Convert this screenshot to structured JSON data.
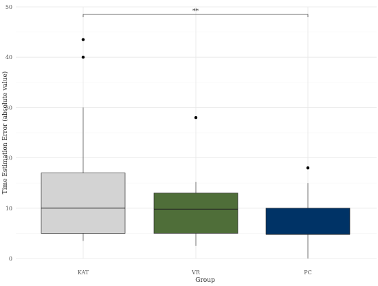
{
  "chart_data": {
    "type": "boxplot",
    "xlabel": "Group",
    "ylabel": "Time Estimation Error (absolute value)",
    "ylim": [
      0,
      50
    ],
    "yticks": [
      0,
      10,
      20,
      30,
      40,
      50
    ],
    "grid": true,
    "categories": [
      "KAT",
      "VR",
      "PC"
    ],
    "colors": [
      "#d3d3d3",
      "#4f6e39",
      "#003366"
    ],
    "boxes": [
      {
        "category": "KAT",
        "min": 3.5,
        "q1": 5,
        "median": 10,
        "q3": 17,
        "max": 30,
        "outliers": [
          40,
          43.5
        ]
      },
      {
        "category": "VR",
        "min": 2.5,
        "q1": 5,
        "median": 9.8,
        "q3": 13,
        "max": 15.2,
        "outliers": [
          28
        ]
      },
      {
        "category": "PC",
        "min": 0,
        "q1": 4.8,
        "median": 4.8,
        "q3": 10,
        "max": 15,
        "outliers": [
          18
        ]
      }
    ],
    "annotations": [
      {
        "type": "bracket",
        "from": "KAT",
        "to": "PC",
        "y": 48.5,
        "label": "**"
      }
    ]
  }
}
